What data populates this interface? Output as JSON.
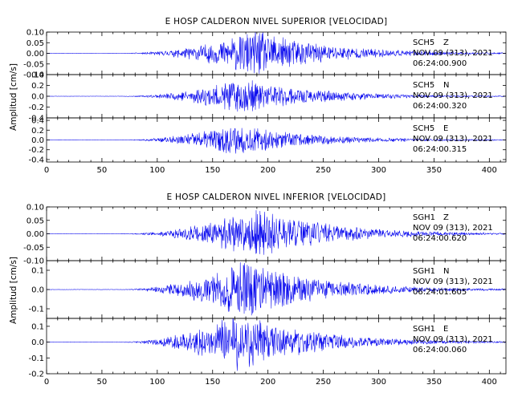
{
  "chart_data": [
    {
      "type": "line",
      "title": "E HOSP CALDERON NIVEL SUPERIOR [VELOCIDAD]",
      "ylabel": "Amplitud [cm/s]",
      "xlabel": "",
      "xlim": [
        0,
        415
      ],
      "xticks": [
        0,
        50,
        100,
        150,
        200,
        250,
        300,
        350,
        400
      ],
      "grid": false,
      "panels": [
        {
          "station": "SCH5",
          "component": "Z",
          "date": "NOV 09 (313), 2021",
          "time": "06:24:00.900",
          "ylim": [
            -0.1,
            0.1
          ],
          "ytick_labels": [
            "0.10",
            "0.05",
            "0.00",
            "-0.05",
            "-0.10"
          ],
          "ytick_values": [
            0.1,
            0.05,
            0.0,
            -0.05,
            -0.1
          ],
          "envelope": {
            "center": 190,
            "peak_amplitude": 0.1,
            "onset": 60,
            "coda_end": 410
          },
          "seed": 11
        },
        {
          "station": "SCH5",
          "component": "N",
          "date": "NOV 09 (313), 2021",
          "time": "06:24:00.320",
          "ylim": [
            -0.4,
            0.4
          ],
          "ytick_labels": [
            "0.4",
            "0.2",
            "0.0",
            "-0.2",
            "-0.4"
          ],
          "ytick_values": [
            0.4,
            0.2,
            0.0,
            -0.2,
            -0.4
          ],
          "envelope": {
            "center": 175,
            "peak_amplitude": 0.3,
            "onset": 60,
            "coda_end": 405
          },
          "seed": 23
        },
        {
          "station": "SCH5",
          "component": "E",
          "date": "NOV 09 (313), 2021",
          "time": "06:24:00.315",
          "ylim": [
            -0.45,
            0.45
          ],
          "ytick_labels": [
            "0.4",
            "0.2",
            "0.0",
            "-0.2",
            "-0.4"
          ],
          "ytick_values": [
            0.4,
            0.2,
            0.0,
            -0.2,
            -0.4
          ],
          "envelope": {
            "center": 168,
            "peak_amplitude": 0.3,
            "onset": 60,
            "coda_end": 400
          },
          "seed": 37
        }
      ]
    },
    {
      "type": "line",
      "title": "E HOSP CALDERON NIVEL INFERIOR [VELOCIDAD]",
      "ylabel": "Amplitud [cm/s]",
      "xlabel": "",
      "xlim": [
        0,
        415
      ],
      "xticks": [
        0,
        50,
        100,
        150,
        200,
        250,
        300,
        350,
        400
      ],
      "grid": false,
      "panels": [
        {
          "station": "SGH1",
          "component": "Z",
          "date": "NOV 09 (313), 2021",
          "time": "06:24:00.620",
          "ylim": [
            -0.1,
            0.1
          ],
          "ytick_labels": [
            "0.10",
            "0.05",
            "0.00",
            "-0.05",
            "-0.10"
          ],
          "ytick_values": [
            0.1,
            0.05,
            0.0,
            -0.05,
            -0.1
          ],
          "envelope": {
            "center": 190,
            "peak_amplitude": 0.09,
            "onset": 60,
            "coda_end": 410
          },
          "seed": 51
        },
        {
          "station": "SGH1",
          "component": "N",
          "date": "NOV 09 (313), 2021",
          "time": "06:24:01.605",
          "ylim": [
            -0.15,
            0.15
          ],
          "ytick_labels": [
            "0.1",
            "0.0",
            "-0.1"
          ],
          "ytick_values": [
            0.1,
            0.0,
            -0.1
          ],
          "envelope": {
            "center": 178,
            "peak_amplitude": 0.14,
            "onset": 60,
            "coda_end": 405
          },
          "seed": 67
        },
        {
          "station": "SGH1",
          "component": "E",
          "date": "NOV 09 (313), 2021",
          "time": "06:24:00.060",
          "ylim": [
            -0.2,
            0.15
          ],
          "ytick_labels": [
            "0.1",
            "0.0",
            "-0.1",
            "-0.2"
          ],
          "ytick_values": [
            0.1,
            0.0,
            -0.1,
            -0.2
          ],
          "envelope": {
            "center": 172,
            "peak_amplitude": 0.17,
            "onset": 60,
            "coda_end": 400
          },
          "seed": 79
        }
      ]
    }
  ]
}
